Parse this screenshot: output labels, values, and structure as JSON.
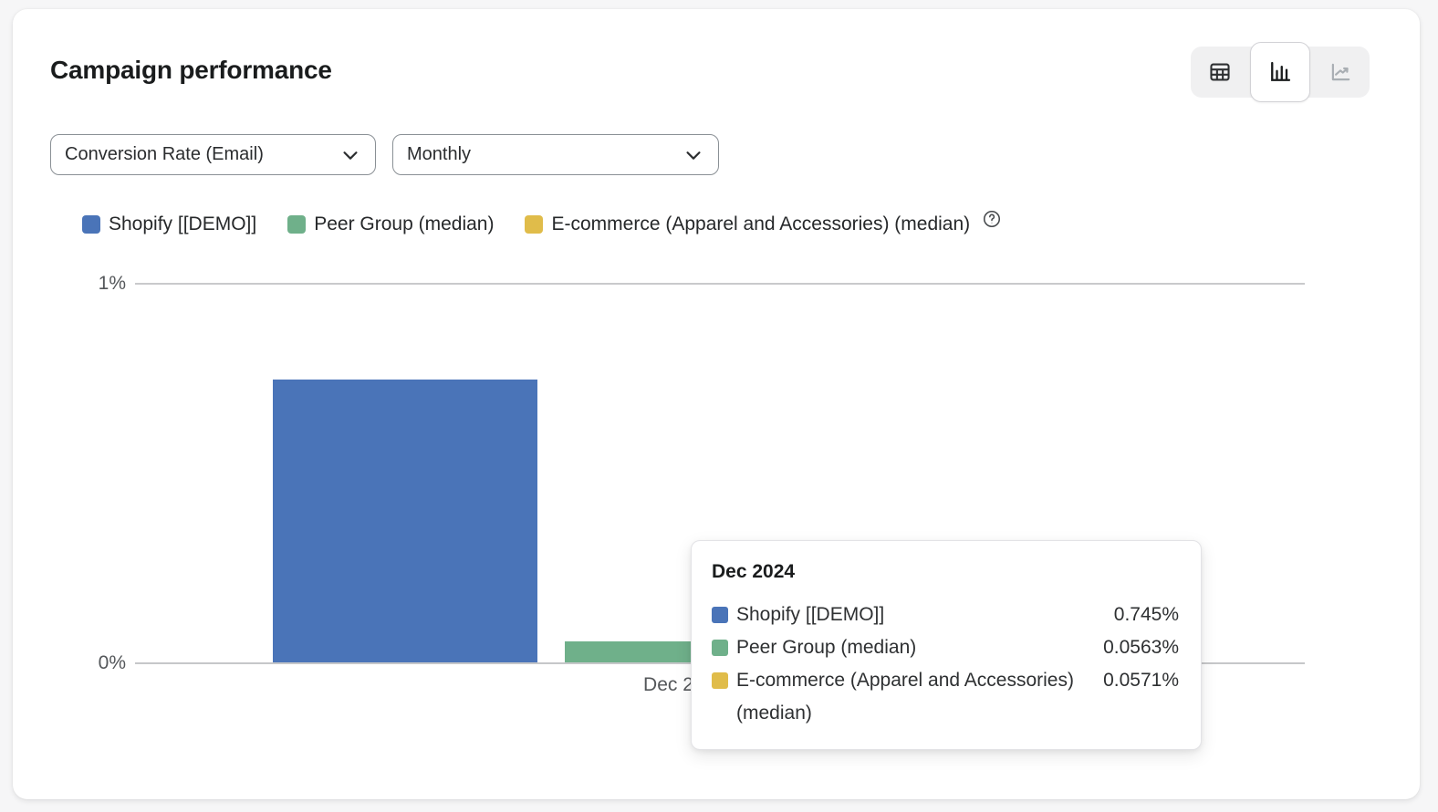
{
  "card": {
    "title": "Campaign performance"
  },
  "view_toggle": {
    "options": [
      {
        "id": "table",
        "icon": "table-icon",
        "selected": false,
        "disabled": false
      },
      {
        "id": "bar-chart",
        "icon": "bar-chart-icon",
        "selected": true,
        "disabled": false
      },
      {
        "id": "line-chart",
        "icon": "line-chart-icon",
        "selected": false,
        "disabled": true
      }
    ]
  },
  "filters": {
    "metric": {
      "value": "Conversion Rate (Email)"
    },
    "period": {
      "value": "Monthly"
    }
  },
  "legend": {
    "items": [
      {
        "label": "Shopify [[DEMO]]",
        "color": "#4a74b8"
      },
      {
        "label": "Peer Group (median)",
        "color": "#6fb08a"
      },
      {
        "label": "E-commerce (Apparel and Accessories) (median)",
        "color": "#e0bc4a"
      }
    ],
    "help_icon": "help-circle-icon"
  },
  "chart_data": {
    "type": "bar",
    "title": "Campaign performance",
    "categories": [
      "Dec 2024"
    ],
    "series": [
      {
        "name": "Shopify [[DEMO]]",
        "color": "#4a74b8",
        "values": [
          0.745
        ]
      },
      {
        "name": "Peer Group (median)",
        "color": "#6fb08a",
        "values": [
          0.0563
        ]
      },
      {
        "name": "E-commerce (Apparel and Accessories) (median)",
        "color": "#e0bc4a",
        "values": [
          0.0571
        ]
      }
    ],
    "unit": "%",
    "ylabel": "",
    "xlabel": "",
    "ylim": [
      0,
      1
    ],
    "y_ticks": [
      "0%",
      "1%"
    ],
    "grid": "horizontal",
    "legend_position": "top"
  },
  "axis": {
    "y_top_label": "1%",
    "y_bottom_label": "0%",
    "x_label": "Dec 2024"
  },
  "tooltip": {
    "title": "Dec 2024",
    "rows": [
      {
        "label": "Shopify [[DEMO]]",
        "value": "0.745%",
        "color": "#4a74b8"
      },
      {
        "label": "Peer Group (median)",
        "value": "0.0563%",
        "color": "#6fb08a"
      },
      {
        "label": "E-commerce (Apparel and Accessories) (median)",
        "value": "0.0571%",
        "color": "#e0bc4a"
      }
    ]
  }
}
